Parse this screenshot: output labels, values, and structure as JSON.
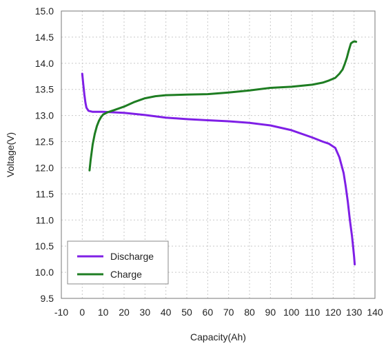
{
  "chart_data": {
    "type": "line",
    "title": "",
    "xlabel": "Capacity(Ah)",
    "ylabel": "Voltage(V)",
    "xlim": [
      -10,
      140
    ],
    "ylim": [
      9.5,
      15.0
    ],
    "x_ticks": [
      -10,
      0,
      10,
      20,
      30,
      40,
      50,
      60,
      70,
      80,
      90,
      100,
      110,
      120,
      130,
      140
    ],
    "y_ticks": [
      "9.5",
      "10.0",
      "10.5",
      "11.0",
      "11.5",
      "12.0",
      "12.5",
      "13.0",
      "13.5",
      "14.0",
      "14.5",
      "15.0"
    ],
    "grid": true,
    "legend_position": "bottom-left",
    "series": [
      {
        "name": "Discharge",
        "color": "#7f1fe6",
        "x": [
          0,
          0.5,
          1,
          1.5,
          2,
          3,
          5,
          10,
          20,
          30,
          40,
          50,
          60,
          70,
          80,
          90,
          100,
          110,
          115,
          118,
          121,
          123,
          125,
          126,
          127,
          128,
          129,
          129.5,
          130,
          130.3
        ],
        "y": [
          13.8,
          13.6,
          13.4,
          13.25,
          13.15,
          13.09,
          13.07,
          13.07,
          13.05,
          13.01,
          12.96,
          12.93,
          12.91,
          12.89,
          12.86,
          12.81,
          12.72,
          12.58,
          12.5,
          12.46,
          12.38,
          12.2,
          11.9,
          11.65,
          11.35,
          11.0,
          10.7,
          10.5,
          10.3,
          10.15
        ]
      },
      {
        "name": "Charge",
        "color": "#1e7d22",
        "x": [
          3.5,
          4,
          5,
          6,
          7,
          8,
          9,
          10,
          11,
          12,
          15,
          20,
          25,
          30,
          35,
          40,
          50,
          60,
          70,
          80,
          90,
          100,
          110,
          115,
          118,
          121,
          123,
          124.5,
          125.5,
          126.5,
          127.5,
          128.5,
          129.5,
          130.3,
          131
        ],
        "y": [
          11.95,
          12.15,
          12.45,
          12.65,
          12.8,
          12.9,
          12.97,
          13.02,
          13.04,
          13.06,
          13.1,
          13.17,
          13.26,
          13.33,
          13.37,
          13.39,
          13.4,
          13.41,
          13.44,
          13.48,
          13.53,
          13.55,
          13.59,
          13.63,
          13.67,
          13.72,
          13.8,
          13.88,
          13.98,
          14.1,
          14.25,
          14.38,
          14.41,
          14.42,
          14.41
        ]
      }
    ]
  }
}
